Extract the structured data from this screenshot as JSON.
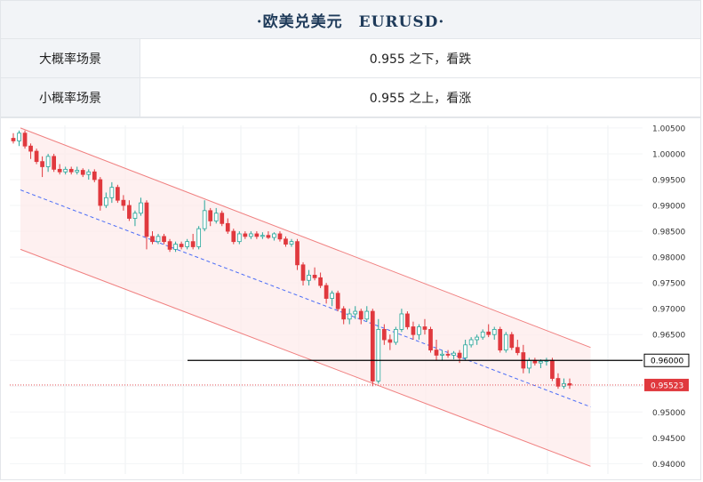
{
  "header": {
    "title": "·欧美兑美元　EURUSD·"
  },
  "rows": [
    {
      "label": "大概率场景",
      "value": "0.955 之下，看跌"
    },
    {
      "label": "小概率场景",
      "value": "0.955 之上，看涨"
    }
  ],
  "chart_data": {
    "type": "candlestick",
    "title": "",
    "ylim": [
      0.938,
      1.0055
    ],
    "y_ticks": [
      "0.94000",
      "0.94500",
      "0.95000",
      "0.95500",
      "0.96000",
      "0.96500",
      "0.97000",
      "0.97500",
      "0.98000",
      "0.98500",
      "0.99000",
      "0.99500",
      "1.00000",
      "1.00500"
    ],
    "candles": [
      [
        1.003,
        1.004,
        1.002,
        1.0025
      ],
      [
        1.0025,
        1.0045,
        1.0015,
        1.004
      ],
      [
        1.004,
        1.0045,
        1.001,
        1.0015
      ],
      [
        1.0015,
        1.002,
        0.999,
        1.0005
      ],
      [
        1.0005,
        1.001,
        0.998,
        0.9985
      ],
      [
        0.9985,
        0.9995,
        0.9955,
        0.9975
      ],
      [
        0.9975,
        1.0,
        0.9965,
        0.9995
      ],
      [
        0.9995,
        1.0,
        0.9965,
        0.997
      ],
      [
        0.997,
        0.998,
        0.996,
        0.9965
      ],
      [
        0.9965,
        0.9975,
        0.996,
        0.997
      ],
      [
        0.997,
        0.9975,
        0.996,
        0.9965
      ],
      [
        0.9965,
        0.9975,
        0.996,
        0.9968
      ],
      [
        0.9968,
        0.9972,
        0.9955,
        0.996
      ],
      [
        0.996,
        0.997,
        0.995,
        0.9965
      ],
      [
        0.9965,
        0.997,
        0.9945,
        0.995
      ],
      [
        0.995,
        0.9955,
        0.989,
        0.99
      ],
      [
        0.99,
        0.9925,
        0.9895,
        0.9915
      ],
      [
        0.9915,
        0.9945,
        0.9905,
        0.9935
      ],
      [
        0.9935,
        0.994,
        0.9905,
        0.991
      ],
      [
        0.991,
        0.992,
        0.989,
        0.99
      ],
      [
        0.99,
        0.991,
        0.987,
        0.9875
      ],
      [
        0.9875,
        0.989,
        0.986,
        0.9885
      ],
      [
        0.9885,
        0.9915,
        0.988,
        0.9905
      ],
      [
        0.9905,
        0.991,
        0.9815,
        0.984
      ],
      [
        0.984,
        0.985,
        0.9825,
        0.983
      ],
      [
        0.983,
        0.9845,
        0.9825,
        0.984
      ],
      [
        0.984,
        0.9845,
        0.9825,
        0.983
      ],
      [
        0.983,
        0.9835,
        0.981,
        0.9815
      ],
      [
        0.9815,
        0.983,
        0.981,
        0.9825
      ],
      [
        0.9825,
        0.983,
        0.9815,
        0.982
      ],
      [
        0.982,
        0.9835,
        0.9815,
        0.983
      ],
      [
        0.983,
        0.9845,
        0.9815,
        0.982
      ],
      [
        0.982,
        0.986,
        0.9815,
        0.9855
      ],
      [
        0.9855,
        0.991,
        0.985,
        0.989
      ],
      [
        0.989,
        0.9895,
        0.986,
        0.987
      ],
      [
        0.987,
        0.9895,
        0.9865,
        0.9885
      ],
      [
        0.9885,
        0.989,
        0.986,
        0.9865
      ],
      [
        0.9865,
        0.9875,
        0.9845,
        0.985
      ],
      [
        0.985,
        0.9855,
        0.9825,
        0.983
      ],
      [
        0.983,
        0.985,
        0.9825,
        0.9845
      ],
      [
        0.9845,
        0.985,
        0.9835,
        0.984
      ],
      [
        0.984,
        0.985,
        0.9835,
        0.9845
      ],
      [
        0.9845,
        0.985,
        0.9835,
        0.984
      ],
      [
        0.984,
        0.9848,
        0.9835,
        0.9842
      ],
      [
        0.9842,
        0.985,
        0.9835,
        0.9838
      ],
      [
        0.9838,
        0.9848,
        0.9832,
        0.9845
      ],
      [
        0.9845,
        0.985,
        0.983,
        0.9835
      ],
      [
        0.9835,
        0.984,
        0.982,
        0.9825
      ],
      [
        0.9825,
        0.9835,
        0.982,
        0.983
      ],
      [
        0.983,
        0.9835,
        0.9775,
        0.9785
      ],
      [
        0.9785,
        0.979,
        0.9745,
        0.9755
      ],
      [
        0.9755,
        0.9775,
        0.9745,
        0.9765
      ],
      [
        0.9765,
        0.978,
        0.9755,
        0.976
      ],
      [
        0.976,
        0.977,
        0.974,
        0.9745
      ],
      [
        0.9745,
        0.975,
        0.971,
        0.972
      ],
      [
        0.972,
        0.9735,
        0.9705,
        0.973
      ],
      [
        0.973,
        0.9735,
        0.9695,
        0.97
      ],
      [
        0.97,
        0.9705,
        0.967,
        0.968
      ],
      [
        0.968,
        0.97,
        0.967,
        0.969
      ],
      [
        0.969,
        0.9705,
        0.968,
        0.9695
      ],
      [
        0.9695,
        0.97,
        0.967,
        0.968
      ],
      [
        0.968,
        0.9705,
        0.9675,
        0.9695
      ],
      [
        0.9695,
        0.97,
        0.955,
        0.956
      ],
      [
        0.956,
        0.968,
        0.9555,
        0.966
      ],
      [
        0.966,
        0.967,
        0.963,
        0.964
      ],
      [
        0.964,
        0.965,
        0.962,
        0.9635
      ],
      [
        0.9635,
        0.9665,
        0.963,
        0.966
      ],
      [
        0.966,
        0.97,
        0.9655,
        0.969
      ],
      [
        0.969,
        0.9695,
        0.966,
        0.9665
      ],
      [
        0.9665,
        0.9675,
        0.964,
        0.965
      ],
      [
        0.965,
        0.967,
        0.964,
        0.9665
      ],
      [
        0.9665,
        0.968,
        0.965,
        0.966
      ],
      [
        0.966,
        0.9665,
        0.9615,
        0.962
      ],
      [
        0.962,
        0.964,
        0.96,
        0.961
      ],
      [
        0.961,
        0.962,
        0.96,
        0.9612
      ],
      [
        0.9612,
        0.962,
        0.9605,
        0.961
      ],
      [
        0.961,
        0.9618,
        0.9602,
        0.9614
      ],
      [
        0.9614,
        0.962,
        0.9595,
        0.9605
      ],
      [
        0.9605,
        0.964,
        0.96,
        0.963
      ],
      [
        0.963,
        0.9645,
        0.9625,
        0.964
      ],
      [
        0.964,
        0.965,
        0.963,
        0.9645
      ],
      [
        0.9645,
        0.966,
        0.964,
        0.9655
      ],
      [
        0.9655,
        0.967,
        0.9645,
        0.965
      ],
      [
        0.965,
        0.9665,
        0.964,
        0.966
      ],
      [
        0.966,
        0.9665,
        0.9615,
        0.962
      ],
      [
        0.962,
        0.9655,
        0.9615,
        0.965
      ],
      [
        0.965,
        0.9655,
        0.962,
        0.9625
      ],
      [
        0.9625,
        0.964,
        0.961,
        0.9615
      ],
      [
        0.9615,
        0.963,
        0.9575,
        0.9585
      ],
      [
        0.9585,
        0.9605,
        0.9575,
        0.96
      ],
      [
        0.96,
        0.9605,
        0.959,
        0.9595
      ],
      [
        0.9595,
        0.9602,
        0.9585,
        0.9598
      ],
      [
        0.9598,
        0.9605,
        0.959,
        0.96
      ],
      [
        0.96,
        0.9605,
        0.956,
        0.9565
      ],
      [
        0.9565,
        0.9575,
        0.9545,
        0.955
      ],
      [
        0.955,
        0.9565,
        0.9545,
        0.9555
      ],
      [
        0.9555,
        0.9565,
        0.9545,
        0.9552
      ]
    ],
    "channel": {
      "upper": [
        [
          0,
          1.005
        ],
        [
          95,
          0.9625
        ]
      ],
      "middle": [
        [
          0,
          0.993
        ],
        [
          95,
          0.951
        ]
      ],
      "lower": [
        [
          0,
          0.9815
        ],
        [
          95,
          0.9395
        ]
      ]
    },
    "levels": [
      {
        "label": "0.96000",
        "value": 0.96,
        "color": "#000000"
      },
      {
        "label": "0.95523",
        "value": 0.95523,
        "color": "#e0393e"
      }
    ],
    "colors": {
      "up": "#26a69a",
      "down": "#e0393e",
      "channel": "#f08080",
      "channel_fill": "#fdeaea",
      "middle": "#4a6cf7"
    }
  }
}
